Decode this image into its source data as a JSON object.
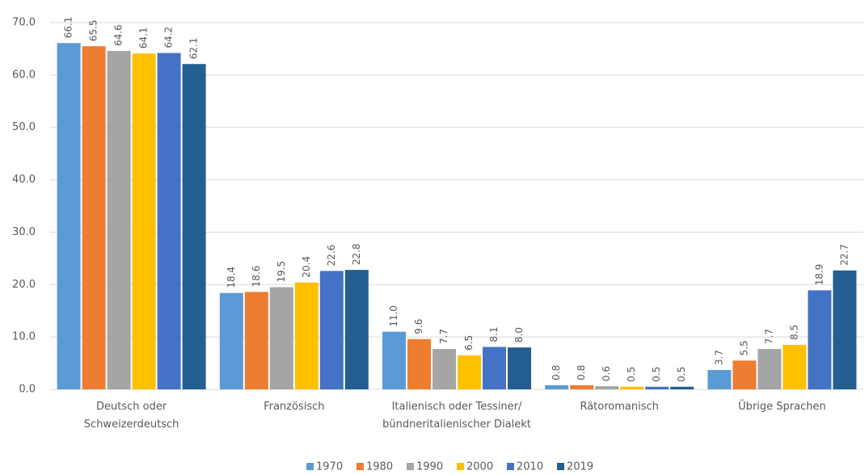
{
  "chart_data": {
    "type": "bar",
    "categories": [
      "Deutsch oder Schweizerdeutsch",
      "Französisch",
      "Italienisch oder Tessiner/ bündneritalienischer Dialekt",
      "Rätoromanisch",
      "Übrige Sprachen"
    ],
    "series": [
      {
        "name": "1970",
        "color": "#5b9bd5",
        "values": [
          66.1,
          18.4,
          11.0,
          0.8,
          3.7
        ],
        "value_labels": [
          "66.1",
          "18.4",
          "11.0",
          "0.8",
          "3.7"
        ]
      },
      {
        "name": "1980",
        "color": "#ed7d31",
        "values": [
          65.5,
          18.6,
          9.6,
          0.8,
          5.5
        ],
        "value_labels": [
          "65.5",
          "18.6",
          "9.6",
          "0.8",
          "5.5"
        ]
      },
      {
        "name": "1990",
        "color": "#a5a5a5",
        "values": [
          64.6,
          19.5,
          7.7,
          0.6,
          7.7
        ],
        "value_labels": [
          "64.6",
          "19.5",
          "7.7",
          "0.6",
          "7.7"
        ]
      },
      {
        "name": "2000",
        "color": "#ffc000",
        "values": [
          64.1,
          20.4,
          6.5,
          0.5,
          8.5
        ],
        "value_labels": [
          "64.1",
          "20.4",
          "6.5",
          "0.5",
          "8.5"
        ]
      },
      {
        "name": "2010",
        "color": "#4472c4",
        "values": [
          64.2,
          22.6,
          8.1,
          0.5,
          18.9
        ],
        "value_labels": [
          "64.2",
          "22.6",
          "8.1",
          "0.5",
          "18.9"
        ]
      },
      {
        "name": "2019",
        "color": "#255e91",
        "values": [
          62.1,
          22.8,
          8.0,
          0.5,
          22.7
        ],
        "value_labels": [
          "62.1",
          "22.8",
          "8.0",
          "0.5",
          "22.7"
        ]
      }
    ],
    "ylim": [
      0,
      70
    ],
    "yticks": [
      {
        "value": 0,
        "label": "0.0"
      },
      {
        "value": 10,
        "label": "10.0"
      },
      {
        "value": 20,
        "label": "20.0"
      },
      {
        "value": 30,
        "label": "30.0"
      },
      {
        "value": 40,
        "label": "40.0"
      },
      {
        "value": 50,
        "label": "50.0"
      },
      {
        "value": 60,
        "label": "60.0"
      },
      {
        "value": 70,
        "label": "70.0"
      }
    ],
    "grid": true,
    "legend": "bottom"
  }
}
